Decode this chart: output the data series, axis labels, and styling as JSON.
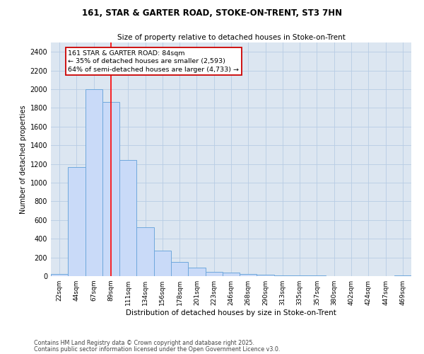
{
  "title1": "161, STAR & GARTER ROAD, STOKE-ON-TRENT, ST3 7HN",
  "title2": "Size of property relative to detached houses in Stoke-on-Trent",
  "xlabel": "Distribution of detached houses by size in Stoke-on-Trent",
  "ylabel": "Number of detached properties",
  "bar_labels": [
    "22sqm",
    "44sqm",
    "67sqm",
    "89sqm",
    "111sqm",
    "134sqm",
    "156sqm",
    "178sqm",
    "201sqm",
    "223sqm",
    "246sqm",
    "268sqm",
    "290sqm",
    "313sqm",
    "335sqm",
    "357sqm",
    "380sqm",
    "402sqm",
    "424sqm",
    "447sqm",
    "469sqm"
  ],
  "bar_values": [
    25,
    1170,
    2000,
    1860,
    1240,
    520,
    275,
    150,
    90,
    45,
    40,
    20,
    15,
    8,
    5,
    4,
    3,
    2,
    2,
    1,
    10
  ],
  "bar_color": "#c9daf8",
  "bar_edge_color": "#6fa8dc",
  "bar_edge_width": 0.7,
  "red_line_x": 3.0,
  "annotation_text": "161 STAR & GARTER ROAD: 84sqm\n← 35% of detached houses are smaller (2,593)\n64% of semi-detached houses are larger (4,733) →",
  "annotation_box_color": "#ffffff",
  "annotation_box_edge": "#cc0000",
  "ylim": [
    0,
    2500
  ],
  "yticks": [
    0,
    200,
    400,
    600,
    800,
    1000,
    1200,
    1400,
    1600,
    1800,
    2000,
    2200,
    2400
  ],
  "grid_color": "#b8cce4",
  "background_color": "#dce6f1",
  "footer1": "Contains HM Land Registry data © Crown copyright and database right 2025.",
  "footer2": "Contains public sector information licensed under the Open Government Licence v3.0."
}
